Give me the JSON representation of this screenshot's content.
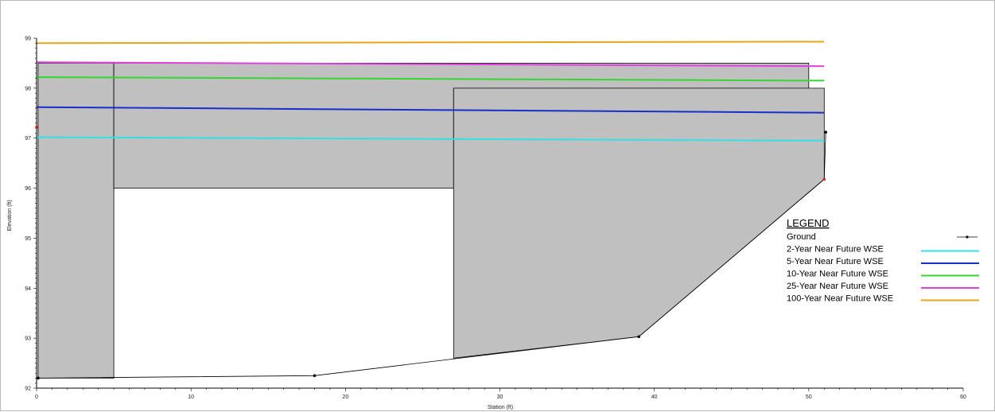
{
  "chart_data": {
    "type": "line",
    "title": "",
    "xlabel": "Station (ft)",
    "ylabel": "Elevation (ft)",
    "xlim": [
      0,
      60
    ],
    "ylim": [
      92,
      99
    ],
    "x_ticks": [
      0,
      10,
      20,
      30,
      40,
      50,
      60
    ],
    "y_ticks": [
      92,
      93,
      94,
      95,
      96,
      97,
      98,
      99
    ],
    "grid": false,
    "legend_position": "right",
    "legend_title": "LEGEND",
    "ground": {
      "name": "Ground",
      "color": "#000000",
      "points": [
        [
          0.1,
          92.2
        ],
        [
          18,
          92.25
        ],
        [
          39,
          93.03
        ],
        [
          51,
          96.18
        ],
        [
          51.1,
          97.12
        ]
      ]
    },
    "obstruction_fill_color": "#c0c0c0",
    "obstructions": [
      {
        "points": [
          [
            0.1,
            98.5
          ],
          [
            5,
            98.5
          ],
          [
            5,
            92.2
          ],
          [
            0.1,
            92.2
          ]
        ]
      },
      {
        "points": [
          [
            5,
            98.5
          ],
          [
            50,
            98.5
          ],
          [
            50,
            98.0
          ],
          [
            27,
            98.0
          ],
          [
            27,
            96.0
          ],
          [
            5,
            96.0
          ]
        ]
      },
      {
        "points": [
          [
            27,
            98.0
          ],
          [
            51,
            98.0
          ],
          [
            51,
            97.12
          ],
          [
            51,
            96.18
          ],
          [
            39,
            93.03
          ],
          [
            27,
            92.6
          ]
        ]
      }
    ],
    "series": [
      {
        "name": "2-Year Near Future WSE",
        "color": "#33e0e8",
        "x": [
          0,
          51
        ],
        "y": [
          97.02,
          96.95
        ]
      },
      {
        "name": "5-Year Near Future WSE",
        "color": "#1a2ecc",
        "x": [
          0,
          51
        ],
        "y": [
          97.62,
          97.51
        ]
      },
      {
        "name": "10-Year Near Future WSE",
        "color": "#33d633",
        "x": [
          0,
          51
        ],
        "y": [
          98.22,
          98.15
        ]
      },
      {
        "name": "25-Year Near Future WSE",
        "color": "#e040e0",
        "x": [
          0,
          51
        ],
        "y": [
          98.52,
          98.44
        ]
      },
      {
        "name": "100-Year Near Future WSE",
        "color": "#e8a515",
        "x": [
          0,
          51
        ],
        "y": [
          98.9,
          98.93
        ]
      }
    ],
    "points": [
      {
        "x": 0.1,
        "y": 92.2,
        "color": "#000000"
      },
      {
        "x": 18,
        "y": 92.25,
        "color": "#000000"
      },
      {
        "x": 39,
        "y": 93.03,
        "color": "#000000"
      },
      {
        "x": 51.1,
        "y": 97.12,
        "color": "#000000"
      },
      {
        "x": 51,
        "y": 96.18,
        "color": "#e02020"
      },
      {
        "x": 0,
        "y": 97.22,
        "color": "#e02020"
      }
    ]
  }
}
